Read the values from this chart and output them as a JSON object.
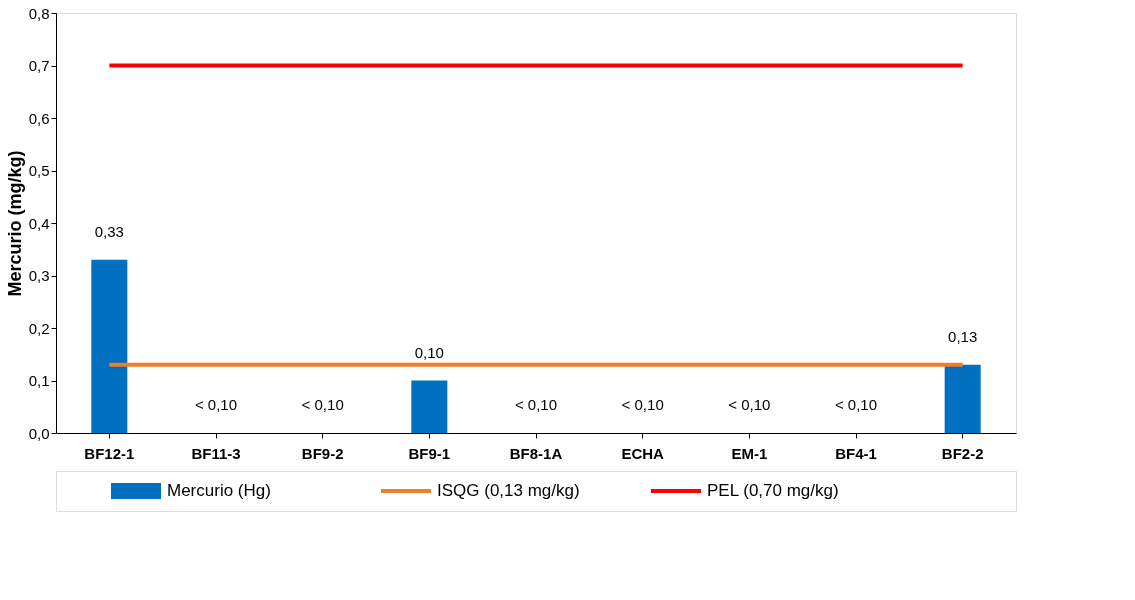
{
  "chart_data": {
    "type": "bar",
    "ylabel": "Mercurio (mg/kg)",
    "categories": [
      "BF12-1",
      "BF11-3",
      "BF9-2",
      "BF9-1",
      "BF8-1A",
      "ECHA",
      "EM-1",
      "BF4-1",
      "BF2-2"
    ],
    "series": [
      {
        "name": "Mercurio (Hg)",
        "color": "#0070c0",
        "values": [
          0.33,
          null,
          null,
          0.1,
          null,
          null,
          null,
          null,
          0.13
        ],
        "value_labels": [
          "0,33",
          "< 0,10",
          "< 0,10",
          "0,10",
          "< 0,10",
          "< 0,10",
          "< 0,10",
          "< 0,10",
          "0,13"
        ]
      },
      {
        "name": "ISQG (0,13 mg/kg)",
        "type": "line",
        "color": "#ed7d31",
        "values": [
          0.13,
          0.13,
          0.13,
          0.13,
          0.13,
          0.13,
          0.13,
          0.13,
          0.13
        ]
      },
      {
        "name": "PEL (0,70 mg/kg)",
        "type": "line",
        "color": "#ff0000",
        "values": [
          0.7,
          0.7,
          0.7,
          0.7,
          0.7,
          0.7,
          0.7,
          0.7,
          0.7
        ]
      }
    ],
    "ylim": [
      0,
      0.8
    ],
    "yticks": [
      {
        "value": 0,
        "label": "0,0"
      },
      {
        "value": 0.1,
        "label": "0,1"
      },
      {
        "value": 0.2,
        "label": "0,2"
      },
      {
        "value": 0.3,
        "label": "0,3"
      },
      {
        "value": 0.4,
        "label": "0,4"
      },
      {
        "value": 0.5,
        "label": "0,5"
      },
      {
        "value": 0.6,
        "label": "0,6"
      },
      {
        "value": 0.7,
        "label": "0,7"
      },
      {
        "value": 0.8,
        "label": "0,8"
      }
    ],
    "grid": false,
    "legend": "bottom"
  }
}
